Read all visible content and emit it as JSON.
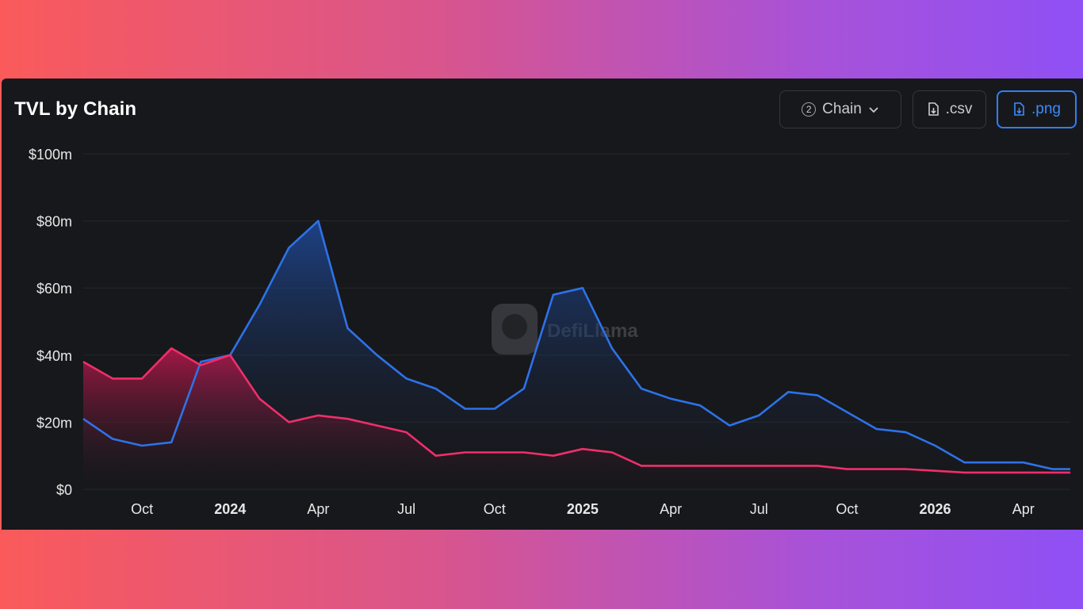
{
  "header": {
    "title": "TVL by Chain",
    "chain_count": "2",
    "chain_label": "Chain",
    "csv_label": ".csv",
    "png_label": ".png"
  },
  "watermark": "DefiLlama",
  "colors": {
    "series_blue": "#2d72e8",
    "series_pink": "#ef2f6a",
    "accent": "#2f7ff7"
  },
  "chart_data": {
    "type": "area",
    "title": "TVL by Chain",
    "xlabel": "",
    "ylabel": "",
    "ylim": [
      0,
      100
    ],
    "y_unit": "$m",
    "y_ticks": [
      "$0",
      "$20m",
      "$40m",
      "$60m",
      "$80m",
      "$100m"
    ],
    "x_ticks": [
      "Oct",
      "2024",
      "Apr",
      "Jul",
      "Oct",
      "2025",
      "Apr",
      "Jul",
      "Oct",
      "2026",
      "Apr"
    ],
    "x_ticks_bold": [
      "2024",
      "2025",
      "2026"
    ],
    "x": [
      "2023-08",
      "2023-09",
      "2023-10",
      "2023-11",
      "2023-12",
      "2024-01",
      "2024-02",
      "2024-03",
      "2024-04",
      "2024-05",
      "2024-06",
      "2024-07",
      "2024-08",
      "2024-09",
      "2024-10",
      "2024-11",
      "2024-12",
      "2025-01",
      "2025-02",
      "2025-03",
      "2025-04",
      "2025-05",
      "2025-06",
      "2025-07",
      "2025-08",
      "2025-09",
      "2025-10",
      "2025-11",
      "2025-12",
      "2026-01",
      "2026-02",
      "2026-03",
      "2026-04",
      "2026-05"
    ],
    "series": [
      {
        "color": "#2d72e8",
        "values": [
          21,
          15,
          13,
          14,
          38,
          40,
          55,
          72,
          80,
          48,
          40,
          33,
          30,
          24,
          24,
          30,
          58,
          60,
          42,
          30,
          27,
          25,
          19,
          22,
          29,
          28,
          23,
          18,
          17,
          13,
          8,
          8,
          8,
          6
        ]
      },
      {
        "color": "#ef2f6a",
        "values": [
          38,
          33,
          33,
          42,
          37,
          40,
          27,
          20,
          22,
          21,
          19,
          17,
          10,
          11,
          11,
          11,
          10,
          12,
          11,
          7,
          7,
          7,
          7,
          7,
          7,
          7,
          6,
          6,
          6,
          5.5,
          5,
          5,
          5,
          5
        ]
      }
    ],
    "grid": true,
    "legend": "none"
  }
}
